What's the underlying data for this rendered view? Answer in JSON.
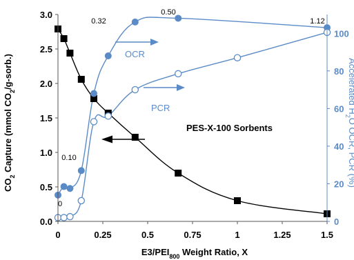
{
  "chart_data": {
    "type": "scatter",
    "xlabel_parts": [
      "E3/PEI",
      "800",
      " Weight Ratio, X"
    ],
    "ylabel_left_parts": [
      "CO",
      "2",
      " Capture  (mmol CO",
      "2",
      "/g-sorb.)"
    ],
    "ylabel_right_parts": [
      "Accelerated H",
      "2",
      "O OCR, PCR (%)"
    ],
    "xlim": [
      0,
      1.5
    ],
    "ylim_left": [
      0,
      3.0
    ],
    "ylim_right": [
      0,
      110
    ],
    "x_ticks": [
      "0",
      "0.25",
      "0.5",
      "0.75",
      "1",
      "1.25",
      "1.5"
    ],
    "y_left_ticks": [
      "0.0",
      "0.5",
      "1.0",
      "1.5",
      "2.0",
      "2.5",
      "3.0"
    ],
    "y_right_ticks": [
      "0",
      "20",
      "40",
      "60",
      "80",
      "100"
    ],
    "series": [
      {
        "axis": "left",
        "marker": "filled-square",
        "color": "#000000",
        "points": [
          [
            0,
            2.79
          ],
          [
            0.033,
            2.65
          ],
          [
            0.067,
            2.44
          ],
          [
            0.13,
            2.06
          ],
          [
            0.2,
            1.78
          ],
          [
            0.28,
            1.57
          ],
          [
            0.43,
            1.22
          ],
          [
            0.67,
            0.7
          ],
          [
            1.0,
            0.3
          ],
          [
            1.5,
            0.11
          ]
        ]
      },
      {
        "name": "OCR",
        "axis": "right",
        "marker": "filled-circle",
        "color": "#5b8bc7",
        "points": [
          [
            0,
            14
          ],
          [
            0.033,
            18.5
          ],
          [
            0.067,
            17.5
          ],
          [
            0.13,
            27
          ],
          [
            0.2,
            68
          ],
          [
            0.28,
            88
          ],
          [
            0.43,
            106
          ],
          [
            0.67,
            108
          ],
          [
            1.5,
            103
          ]
        ]
      },
      {
        "name": "PCR",
        "axis": "right",
        "marker": "open-circle",
        "color": "#5b8bc7",
        "points": [
          [
            0,
            2
          ],
          [
            0.033,
            2
          ],
          [
            0.067,
            2.5
          ],
          [
            0.13,
            11
          ],
          [
            0.2,
            53
          ],
          [
            0.28,
            56
          ],
          [
            0.43,
            70
          ],
          [
            0.67,
            78.5
          ],
          [
            1.0,
            87
          ],
          [
            1.5,
            100.5
          ]
        ]
      }
    ],
    "annotations": {
      "ocr_values": [
        "0",
        "0.10",
        "0.32",
        "0.50",
        "1.12"
      ],
      "sorbent_label": "PES-X-100 Sorbents"
    }
  }
}
